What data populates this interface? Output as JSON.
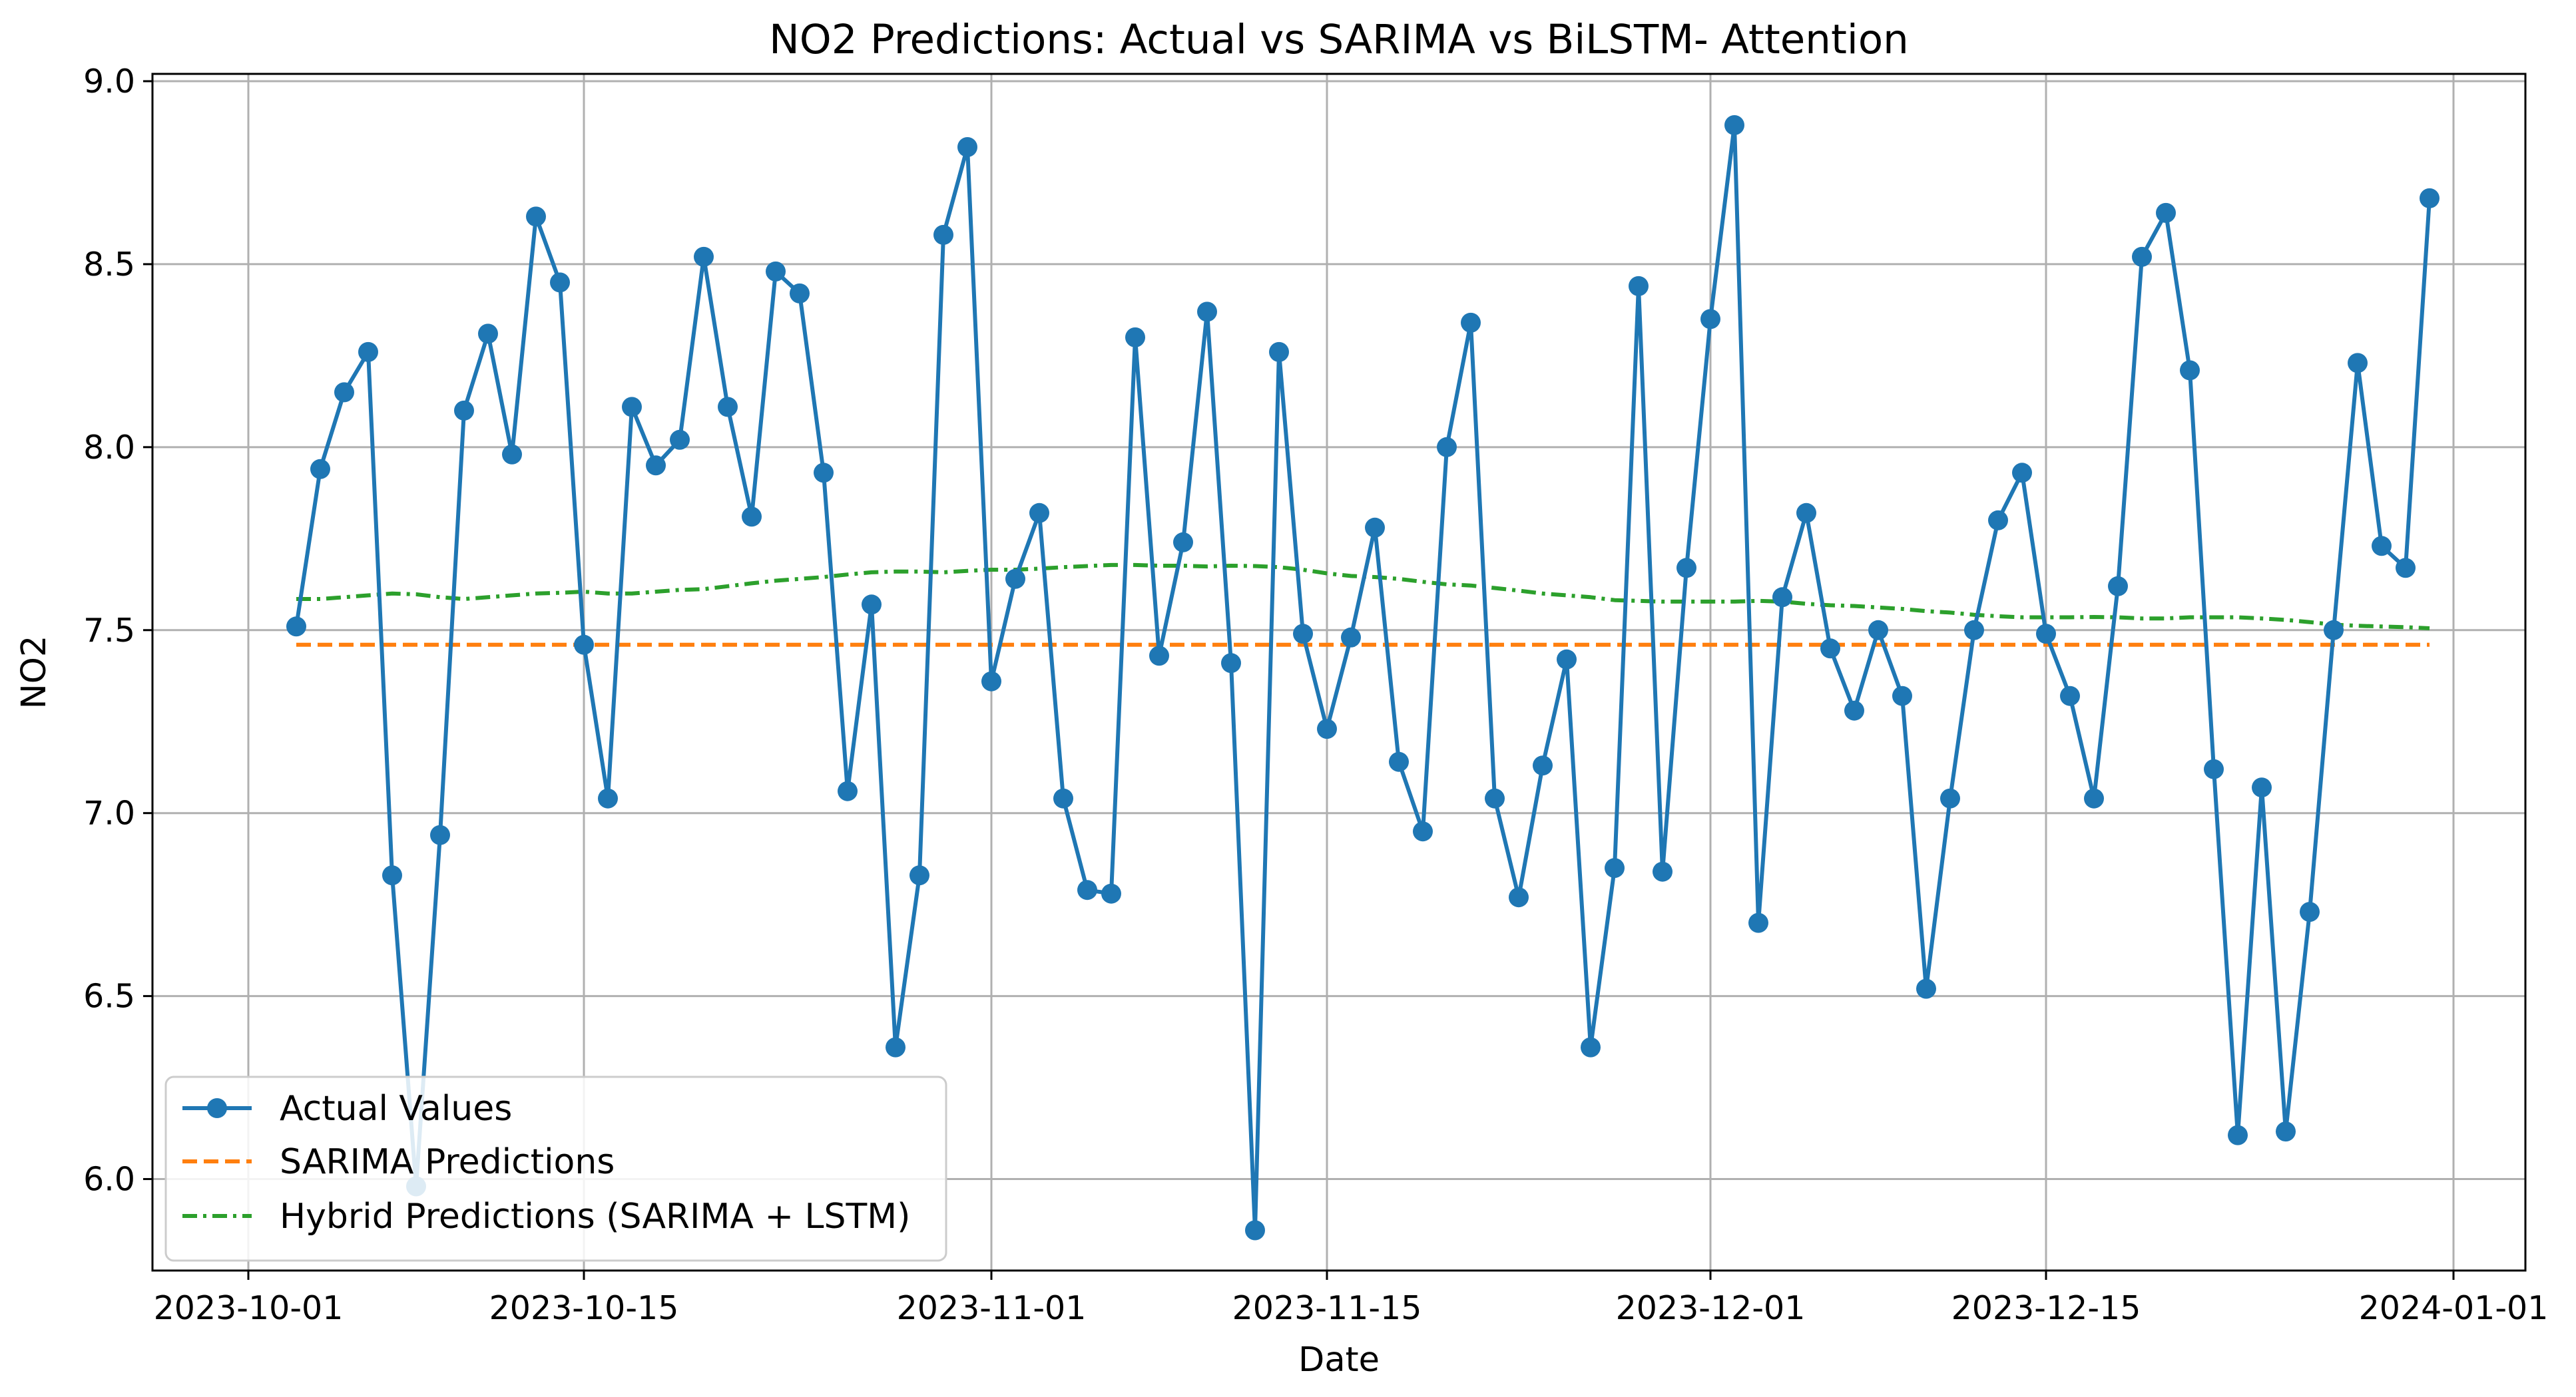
{
  "chart_data": {
    "type": "line",
    "title": "NO2 Predictions: Actual vs SARIMA vs BiLSTM- Attention",
    "xlabel": "Date",
    "ylabel": "NO2",
    "xlim": [
      "2023-09-27",
      "2024-01-04"
    ],
    "ylim": [
      5.75,
      9.02
    ],
    "x_ticks": [
      "2023-10-01",
      "2023-10-15",
      "2023-11-01",
      "2023-11-15",
      "2023-12-01",
      "2023-12-15",
      "2024-01-01"
    ],
    "y_ticks": [
      "6.0",
      "6.5",
      "7.0",
      "7.5",
      "8.0",
      "8.5",
      "9.0"
    ],
    "grid": true,
    "legend_position": "lower-left",
    "x_start": "2023-10-03",
    "x_step_days": 1,
    "series": [
      {
        "name": "Actual Values",
        "style": "solid-markers",
        "color": "#1f77b4",
        "values": [
          7.51,
          7.94,
          8.15,
          8.26,
          6.83,
          5.98,
          6.94,
          8.1,
          8.31,
          7.98,
          8.63,
          8.45,
          7.46,
          7.04,
          8.11,
          7.95,
          8.02,
          8.52,
          8.11,
          7.81,
          8.48,
          8.42,
          7.93,
          7.06,
          7.57,
          6.36,
          6.83,
          8.58,
          8.82,
          7.36,
          7.64,
          7.82,
          7.04,
          6.79,
          6.78,
          8.3,
          7.43,
          7.74,
          8.37,
          7.41,
          5.86,
          8.26,
          7.49,
          7.23,
          7.48,
          7.78,
          7.14,
          6.95,
          8.0,
          8.34,
          7.04,
          6.77,
          7.13,
          7.42,
          6.36,
          6.85,
          8.44,
          6.84,
          7.67,
          8.35,
          8.88,
          6.7,
          7.59,
          7.82,
          7.45,
          7.28,
          7.5,
          7.32,
          6.52,
          7.04,
          7.5,
          7.8,
          7.93,
          7.49,
          7.32,
          7.04,
          7.62,
          8.52,
          8.64,
          8.21,
          7.12,
          6.12,
          7.07,
          6.13,
          6.73,
          7.5,
          8.23,
          7.73,
          7.67,
          8.68
        ]
      },
      {
        "name": "SARIMA Predictions",
        "style": "dashed",
        "color": "#ff7f0e",
        "values": [
          7.46,
          7.46,
          7.46,
          7.46,
          7.46,
          7.46,
          7.46,
          7.46,
          7.46,
          7.46,
          7.46,
          7.46,
          7.46,
          7.46,
          7.46,
          7.46,
          7.46,
          7.46,
          7.46,
          7.46,
          7.46,
          7.46,
          7.46,
          7.46,
          7.46,
          7.46,
          7.46,
          7.46,
          7.46,
          7.46,
          7.46,
          7.46,
          7.46,
          7.46,
          7.46,
          7.46,
          7.46,
          7.46,
          7.46,
          7.46,
          7.46,
          7.46,
          7.46,
          7.46,
          7.46,
          7.46,
          7.46,
          7.46,
          7.46,
          7.46,
          7.46,
          7.46,
          7.46,
          7.46,
          7.46,
          7.46,
          7.46,
          7.46,
          7.46,
          7.46,
          7.46,
          7.46,
          7.46,
          7.46,
          7.46,
          7.46,
          7.46,
          7.46,
          7.46,
          7.46,
          7.46,
          7.46,
          7.46,
          7.46,
          7.46,
          7.46,
          7.46,
          7.46,
          7.46,
          7.46,
          7.46,
          7.46,
          7.46,
          7.46,
          7.46,
          7.46,
          7.46,
          7.46,
          7.46,
          7.46
        ]
      },
      {
        "name": "Hybrid Predictions (SARIMA + LSTM)",
        "style": "dashdot",
        "color": "#2ca02c",
        "values": [
          7.585,
          7.585,
          7.59,
          7.595,
          7.6,
          7.598,
          7.59,
          7.585,
          7.59,
          7.595,
          7.6,
          7.602,
          7.605,
          7.6,
          7.6,
          7.605,
          7.61,
          7.612,
          7.62,
          7.628,
          7.635,
          7.64,
          7.645,
          7.652,
          7.658,
          7.66,
          7.66,
          7.658,
          7.662,
          7.665,
          7.665,
          7.668,
          7.672,
          7.675,
          7.678,
          7.678,
          7.676,
          7.676,
          7.674,
          7.676,
          7.675,
          7.672,
          7.665,
          7.655,
          7.648,
          7.645,
          7.64,
          7.632,
          7.625,
          7.622,
          7.615,
          7.608,
          7.6,
          7.595,
          7.59,
          7.582,
          7.58,
          7.578,
          7.578,
          7.578,
          7.578,
          7.58,
          7.578,
          7.572,
          7.568,
          7.566,
          7.562,
          7.558,
          7.552,
          7.548,
          7.542,
          7.538,
          7.535,
          7.535,
          7.535,
          7.536,
          7.535,
          7.532,
          7.532,
          7.535,
          7.535,
          7.535,
          7.532,
          7.528,
          7.522,
          7.515,
          7.512,
          7.51,
          7.508,
          7.505
        ]
      }
    ]
  }
}
